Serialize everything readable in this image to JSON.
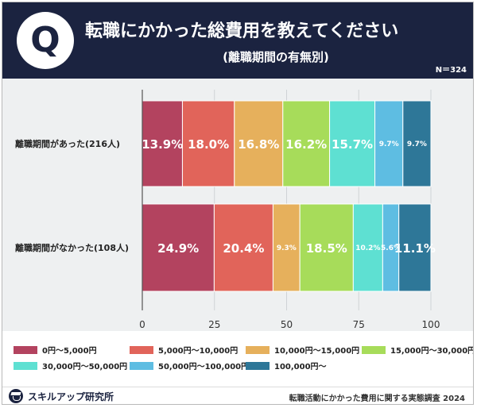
{
  "header": {
    "badge": "Q",
    "title": "転職にかかった総費用を教えてください",
    "subtitle": "(離職期間の有無別)",
    "n": "N＝324"
  },
  "footer": {
    "brand": "スキルアップ研究所",
    "source": "転職活動にかかった費用に関する実態調査 2024"
  },
  "chart_data": {
    "type": "bar",
    "orientation": "horizontal",
    "stacked": true,
    "categories": [
      "離職期間があった(216人)",
      "離職期間がなかった(108人)"
    ],
    "series": [
      {
        "name": "0円～5,000円",
        "color": "#b3435f",
        "values": [
          13.9,
          24.9
        ]
      },
      {
        "name": "5,000円～10,000円",
        "color": "#e1645a",
        "values": [
          18.0,
          20.4
        ]
      },
      {
        "name": "10,000円～15,000円",
        "color": "#e6b05c",
        "values": [
          16.8,
          9.3
        ]
      },
      {
        "name": "15,000円～30,000円",
        "color": "#a7dc5a",
        "values": [
          16.2,
          18.5
        ]
      },
      {
        "name": "30,000円～50,000円",
        "color": "#5ee0d2",
        "values": [
          15.7,
          10.2
        ]
      },
      {
        "name": "50,000円～100,000円",
        "color": "#5ebde2",
        "values": [
          9.7,
          5.6
        ]
      },
      {
        "name": "100,000円～",
        "color": "#2e7798",
        "values": [
          9.7,
          11.1
        ]
      }
    ],
    "labels": [
      [
        "13.9%",
        "18.0%",
        "16.8%",
        "16.2%",
        "15.7%",
        "9.7%",
        "9.7%"
      ],
      [
        "24.9%",
        "20.4%",
        "9.3%",
        "18.5%",
        "10.2%",
        "5.6%",
        "11.1%"
      ]
    ],
    "xlim": [
      0,
      100
    ],
    "xticks": [
      "0",
      "25",
      "50",
      "75",
      "100"
    ],
    "xtick_values": [
      0,
      25,
      50,
      75,
      100
    ],
    "legend_position": "bottom"
  }
}
